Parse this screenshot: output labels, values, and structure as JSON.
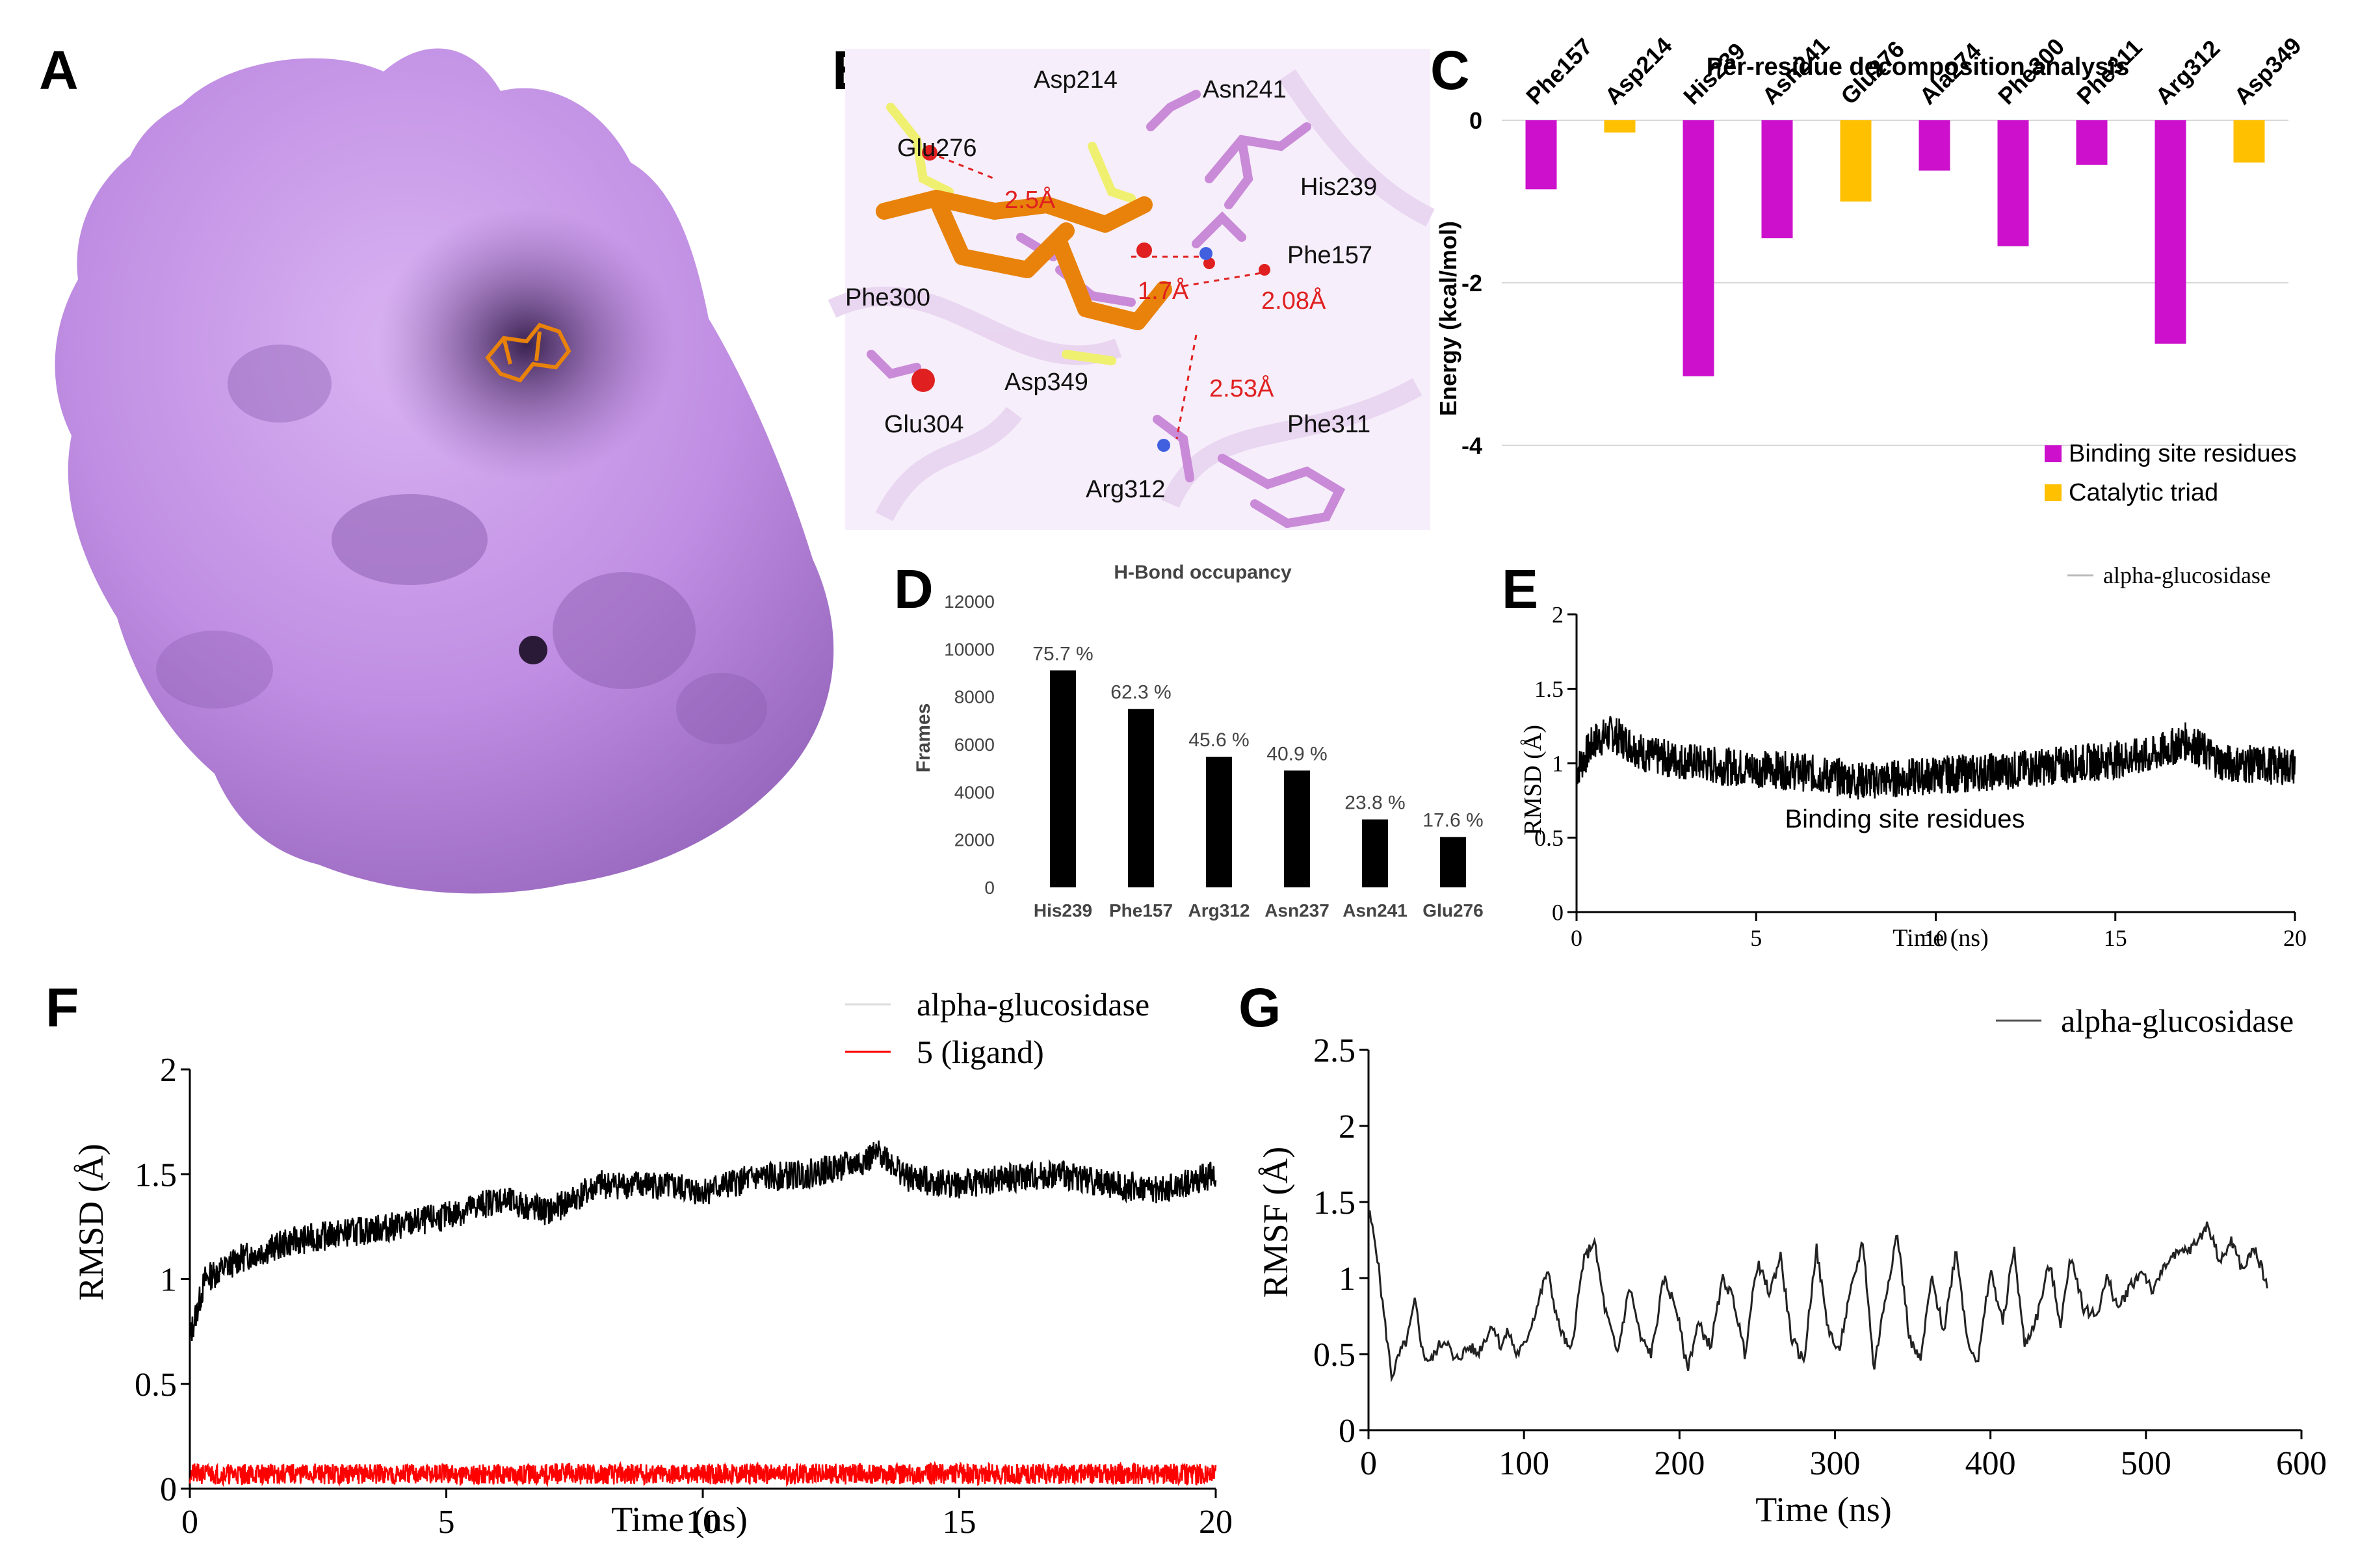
{
  "panels": {
    "A": "A",
    "B": "B",
    "C": "C",
    "D": "D",
    "E": "E",
    "F": "F",
    "G": "G"
  },
  "colors": {
    "protein_surface": "#c79be8",
    "protein_shadow": "#7a4f9a",
    "ligand": "#e8820a",
    "residue_purple": "#c98ad8",
    "catalytic_yellow": "#f0f070",
    "distance_red": "#e02020",
    "binding_site_bar": "#cc10cc",
    "catalytic_triad_bar": "#ffc000",
    "hbond_bar": "#000000",
    "ligand_line": "#ff0000"
  },
  "panel_b": {
    "residues": [
      "Asp214",
      "Asn241",
      "Glu276",
      "His239",
      "Phe157",
      "Phe300",
      "Asp349",
      "Glu304",
      "Arg312",
      "Phe311"
    ],
    "distances": [
      "2.5Å",
      "1.7Å",
      "2.08Å",
      "2.53Å"
    ]
  },
  "chart_data": [
    {
      "id": "C",
      "type": "bar",
      "title": "Per-residue decomposition analysis",
      "ylabel": "Energy (kcal/mol)",
      "categories": [
        "Phe157",
        "Asp214",
        "His239",
        "Asn241",
        "Glu276",
        "Ala274",
        "Phe300",
        "Phe311",
        "Arg312",
        "Asp349"
      ],
      "values": [
        -0.85,
        -0.15,
        -3.15,
        -1.45,
        -1.0,
        -0.62,
        -1.55,
        -0.55,
        -2.75,
        -0.52
      ],
      "groups": [
        "Binding site residues",
        "Catalytic triad",
        "Binding site residues",
        "Binding site residues",
        "Catalytic triad",
        "Binding site residues",
        "Binding site residues",
        "Binding site residues",
        "Binding site residues",
        "Catalytic triad"
      ],
      "legend": [
        "Binding site residues",
        "Catalytic triad"
      ],
      "yticks": [
        "0",
        "-2",
        "-4"
      ],
      "ylim": [
        -4,
        0
      ],
      "legend_position": "bottom-right"
    },
    {
      "id": "D",
      "type": "bar",
      "title": "H-Bond occupancy",
      "ylabel": "Frames",
      "categories": [
        "His239",
        "Phe157",
        "Arg312",
        "Asn237",
        "Asn241",
        "Glu276"
      ],
      "values": [
        9100,
        7480,
        5480,
        4900,
        2850,
        2110
      ],
      "data_labels": [
        "75.7 %",
        "62.3 %",
        "45.6 %",
        "40.9 %",
        "23.8 %",
        "17.6 %"
      ],
      "yticks": [
        "0",
        "2000",
        "4000",
        "6000",
        "8000",
        "10000",
        "12000"
      ],
      "ylim": [
        0,
        12000
      ]
    },
    {
      "id": "E",
      "type": "line",
      "ylabel": "RMSD (Å)",
      "xlabel": "Time (ns)",
      "annotation": "Binding site residues",
      "series": [
        {
          "name": "alpha-glucosidase",
          "mean_profile_x": [
            0,
            0.5,
            1,
            2,
            4,
            6,
            8,
            10,
            12,
            14,
            16,
            17,
            18,
            20
          ],
          "mean_profile_y": [
            0.95,
            1.15,
            1.2,
            1.05,
            0.98,
            0.95,
            0.88,
            0.92,
            0.95,
            1.0,
            1.05,
            1.15,
            1.0,
            0.98
          ]
        }
      ],
      "xticks": [
        "0",
        "5",
        "10",
        "15",
        "20"
      ],
      "yticks": [
        "0",
        "0.5",
        "1",
        "1.5",
        "2"
      ],
      "xlim": [
        0,
        20
      ],
      "ylim": [
        0,
        2
      ],
      "legend_position": "top-right"
    },
    {
      "id": "F",
      "type": "line",
      "ylabel": "RMSD (Å)",
      "xlabel": "Time (ns)",
      "series": [
        {
          "name": "alpha-glucosidase",
          "mean_profile_x": [
            0,
            0.3,
            1,
            2,
            3,
            4,
            5,
            6,
            7,
            8,
            9,
            10,
            11,
            12,
            13,
            13.5,
            14,
            15,
            16,
            17,
            18,
            19,
            20
          ],
          "mean_profile_y": [
            0.72,
            1.0,
            1.1,
            1.18,
            1.22,
            1.25,
            1.3,
            1.38,
            1.32,
            1.45,
            1.45,
            1.42,
            1.48,
            1.5,
            1.55,
            1.6,
            1.48,
            1.45,
            1.48,
            1.5,
            1.45,
            1.42,
            1.5
          ]
        },
        {
          "name": "5 (ligand)",
          "mean_profile_x": [
            0,
            20
          ],
          "mean_profile_y": [
            0.07,
            0.07
          ]
        }
      ],
      "xticks": [
        "0",
        "5",
        "10",
        "15",
        "20"
      ],
      "yticks": [
        "0",
        "0.5",
        "1",
        "1.5",
        "2"
      ],
      "xlim": [
        0,
        20
      ],
      "ylim": [
        0,
        2
      ],
      "legend_position": "top-right"
    },
    {
      "id": "G",
      "type": "line",
      "ylabel": "RMSF (Å)",
      "xlabel": "Time (ns)",
      "series": [
        {
          "name": "alpha-glucosidase",
          "x": [
            0,
            5,
            10,
            15,
            20,
            25,
            30,
            35,
            40,
            45,
            50,
            55,
            60,
            65,
            70,
            75,
            80,
            85,
            90,
            95,
            100,
            108,
            115,
            122,
            130,
            138,
            145,
            152,
            160,
            168,
            175,
            182,
            190,
            198,
            205,
            212,
            220,
            228,
            235,
            242,
            250,
            258,
            265,
            272,
            280,
            288,
            295,
            302,
            310,
            318,
            325,
            332,
            340,
            348,
            355,
            362,
            370,
            378,
            385,
            392,
            400,
            408,
            415,
            422,
            430,
            438,
            445,
            452,
            460,
            468,
            475,
            482,
            490,
            498,
            505,
            512,
            520,
            530,
            540,
            548,
            555,
            562,
            570,
            578
          ],
          "y": [
            1.45,
            1.2,
            0.75,
            0.35,
            0.5,
            0.6,
            0.85,
            0.5,
            0.45,
            0.55,
            0.6,
            0.45,
            0.5,
            0.55,
            0.5,
            0.6,
            0.7,
            0.55,
            0.65,
            0.5,
            0.55,
            0.8,
            1.05,
            0.7,
            0.5,
            1.1,
            1.25,
            0.8,
            0.5,
            0.95,
            0.6,
            0.5,
            1.0,
            0.8,
            0.4,
            0.7,
            0.55,
            1.0,
            0.85,
            0.5,
            1.1,
            0.9,
            1.15,
            0.6,
            0.45,
            1.2,
            0.7,
            0.5,
            0.9,
            1.25,
            0.4,
            0.85,
            1.3,
            0.6,
            0.45,
            1.0,
            0.65,
            1.2,
            0.6,
            0.45,
            1.05,
            0.7,
            1.2,
            0.55,
            0.75,
            1.1,
            0.7,
            1.15,
            0.8,
            0.75,
            1.0,
            0.8,
            0.95,
            1.05,
            0.9,
            1.1,
            1.15,
            1.2,
            1.35,
            1.1,
            1.25,
            1.05,
            1.2,
            0.95
          ]
        }
      ],
      "xticks": [
        "0",
        "100",
        "200",
        "300",
        "400",
        "500",
        "600"
      ],
      "yticks": [
        "0",
        "0.5",
        "1",
        "1.5",
        "2",
        "2.5"
      ],
      "xlim": [
        0,
        600
      ],
      "ylim": [
        0,
        2.5
      ],
      "legend_position": "top-right"
    }
  ]
}
